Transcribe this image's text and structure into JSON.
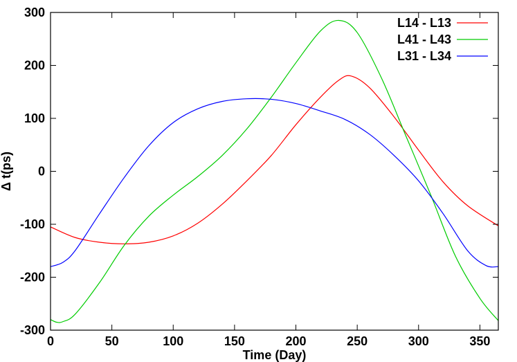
{
  "chart_data": {
    "type": "line",
    "title": "",
    "xlabel": "Time (Day)",
    "ylabel": "Δ t(ps)",
    "xlim": [
      0,
      365
    ],
    "ylim": [
      -300,
      300
    ],
    "xticks": [
      0,
      50,
      100,
      150,
      200,
      250,
      300,
      350
    ],
    "yticks": [
      -300,
      -200,
      -100,
      0,
      100,
      200,
      300
    ],
    "grid": false,
    "legend_position": "top-right",
    "series": [
      {
        "name": "L14 - L13",
        "color": "#ff0000",
        "x": [
          0,
          20,
          40,
          60,
          80,
          100,
          120,
          140,
          160,
          180,
          200,
          220,
          235,
          245,
          260,
          280,
          300,
          320,
          340,
          365
        ],
        "y": [
          -105,
          -125,
          -134,
          -137,
          -134,
          -122,
          -98,
          -62,
          -18,
          30,
          88,
          140,
          172,
          180,
          158,
          103,
          40,
          -20,
          -65,
          -103
        ]
      },
      {
        "name": "L41 - L43",
        "color": "#00cc00",
        "x": [
          0,
          5,
          10,
          20,
          40,
          60,
          80,
          100,
          120,
          140,
          160,
          180,
          200,
          220,
          235,
          250,
          270,
          290,
          310,
          330,
          350,
          365
        ],
        "y": [
          -280,
          -285,
          -284,
          -270,
          -210,
          -140,
          -85,
          -45,
          -10,
          30,
          80,
          140,
          205,
          265,
          285,
          262,
          175,
          65,
          -45,
          -160,
          -240,
          -282
        ]
      },
      {
        "name": "L31 - L34",
        "color": "#0000ff",
        "x": [
          0,
          10,
          20,
          40,
          60,
          80,
          100,
          120,
          140,
          160,
          180,
          200,
          220,
          240,
          260,
          280,
          300,
          320,
          340,
          355,
          365
        ],
        "y": [
          -180,
          -172,
          -150,
          -80,
          -12,
          48,
          92,
          118,
          132,
          137,
          136,
          128,
          114,
          98,
          70,
          30,
          -18,
          -80,
          -150,
          -178,
          -180
        ]
      }
    ]
  }
}
